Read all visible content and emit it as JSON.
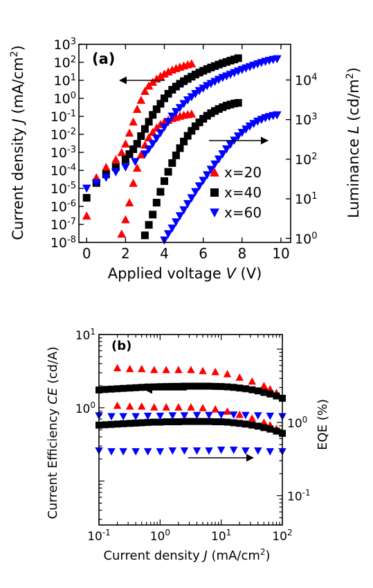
{
  "chart_data": [
    {
      "panel": "(a)",
      "type": "scatter",
      "xlabel": {
        "pre": "Applied voltage ",
        "var": "V",
        "post": " (V)"
      },
      "ylabel_left": {
        "pre": "Current density ",
        "var": "J",
        "post": " (mA/cm",
        "sup": "2",
        "close": ")"
      },
      "ylabel_right": {
        "pre": "Luminance ",
        "var": "L",
        "post": " (cd/m",
        "sup": "2",
        "close": ")"
      },
      "xlim": [
        -0.4,
        10.5
      ],
      "xticks": [
        0,
        2,
        4,
        6,
        8,
        10
      ],
      "ylim_left_log10": [
        -8,
        3
      ],
      "yscale_left": "log",
      "yticks_left": [
        -8,
        -7,
        -6,
        -5,
        -4,
        -3,
        -2,
        -1,
        0,
        1,
        2,
        3
      ],
      "ylim_right_log10": [
        -0.1,
        4.9
      ],
      "yscale_right": "log",
      "yticks_right": [
        0,
        1,
        2,
        3,
        4
      ],
      "legend": {
        "position": "bottom-right"
      },
      "annotations": [
        {
          "text": "arrow-left",
          "meaning": "J curves read on left axis"
        },
        {
          "text": "arrow-right",
          "meaning": "L curves read on right axis"
        }
      ],
      "series": [
        {
          "name": "x=20",
          "color": "#ff0000",
          "marker": "triangle-up",
          "J": {
            "x": [
              0,
              0.5,
              1.0,
              1.5,
              1.8,
              2.0,
              2.2,
              2.4,
              2.6,
              2.8,
              3.0,
              3.2,
              3.4,
              3.6,
              3.8,
              4.0,
              4.2,
              4.4,
              4.6,
              4.8,
              5.0,
              5.2,
              5.4
            ],
            "y": [
              3e-07,
              4e-05,
              0.00015,
              0.0004,
              0.001,
              0.003,
              0.012,
              0.05,
              0.25,
              0.8,
              2.5,
              5,
              8,
              12,
              17,
              23,
              30,
              38,
              46,
              55,
              65,
              75,
              85
            ]
          },
          "L": {
            "x": [
              1.8,
              2.0,
              2.2,
              2.4,
              2.6,
              2.8,
              3.0,
              3.2,
              3.4,
              3.6,
              3.8,
              4.0,
              4.2,
              4.4,
              4.6,
              4.8,
              5.0,
              5.2,
              5.4
            ],
            "y": [
              1.3,
              3,
              8,
              25,
              60,
              130,
              230,
              350,
              480,
              620,
              760,
              880,
              980,
              1080,
              1150,
              1230,
              1300,
              1350,
              1400
            ]
          }
        },
        {
          "name": "x=40",
          "color": "#000000",
          "marker": "square",
          "J": {
            "x": [
              0,
              0.5,
              1.0,
              1.5,
              2.0,
              2.2,
              2.4,
              2.6,
              2.8,
              3.0,
              3.2,
              3.4,
              3.6,
              3.8,
              4.0,
              4.2,
              4.4,
              4.6,
              4.8,
              5.0,
              5.2,
              5.4,
              5.6,
              5.8,
              6.0,
              6.2,
              6.4,
              6.6,
              6.8,
              7.0,
              7.2,
              7.4,
              7.6,
              7.8
            ],
            "y": [
              3e-06,
              2e-05,
              6e-05,
              0.00015,
              0.0004,
              0.0008,
              0.0015,
              0.003,
              0.008,
              0.02,
              0.05,
              0.12,
              0.25,
              0.5,
              1.0,
              1.8,
              3,
              4.5,
              6.5,
              9,
              12,
              16,
              21,
              27,
              34,
              42,
              52,
              62,
              75,
              90,
              105,
              125,
              145,
              170
            ]
          },
          "L": {
            "x": [
              3.0,
              3.2,
              3.4,
              3.6,
              3.8,
              4.0,
              4.2,
              4.4,
              4.6,
              4.8,
              5.0,
              5.2,
              5.4,
              5.6,
              5.8,
              6.0,
              6.2,
              6.4,
              6.6,
              6.8,
              7.0,
              7.2,
              7.4,
              7.6,
              7.8
            ],
            "y": [
              1.2,
              2.2,
              4,
              8,
              15,
              28,
              48,
              80,
              125,
              190,
              280,
              390,
              520,
              680,
              850,
              1050,
              1250,
              1450,
              1650,
              1850,
              2050,
              2250,
              2400,
              2550,
              2650
            ]
          }
        },
        {
          "name": "x=60",
          "color": "#0000ff",
          "marker": "triangle-down",
          "J": {
            "x": [
              0,
              0.5,
              1.0,
              1.5,
              2.0,
              2.5,
              3.0,
              3.2,
              3.4,
              3.6,
              3.8,
              4.0,
              4.2,
              4.4,
              4.6,
              4.8,
              5.0,
              5.2,
              5.4,
              5.6,
              5.8,
              6.0,
              6.2,
              6.4,
              6.6,
              6.8,
              7.0,
              7.2,
              7.4,
              7.6,
              7.8,
              8.0,
              8.2,
              8.4,
              8.6,
              8.8,
              9.0,
              9.2,
              9.4,
              9.6,
              9.8
            ],
            "y": [
              1e-05,
              2e-05,
              4e-05,
              8e-05,
              0.00015,
              0.0003,
              0.0008,
              0.0015,
              0.003,
              0.006,
              0.012,
              0.025,
              0.05,
              0.1,
              0.18,
              0.3,
              0.5,
              0.8,
              1.2,
              1.8,
              2.6,
              3.6,
              5,
              6.5,
              8.5,
              11,
              14,
              17,
              21,
              26,
              32,
              39,
              47,
              56,
              67,
              80,
              95,
              110,
              125,
              140,
              155
            ]
          },
          "L": {
            "x": [
              4.0,
              4.2,
              4.4,
              4.6,
              4.8,
              5.0,
              5.2,
              5.4,
              5.6,
              5.8,
              6.0,
              6.2,
              6.4,
              6.6,
              6.8,
              7.0,
              7.2,
              7.4,
              7.6,
              7.8,
              8.0,
              8.2,
              8.4,
              8.6,
              8.8,
              9.0,
              9.2,
              9.4,
              9.6,
              9.8
            ],
            "y": [
              0.9,
              1.3,
              1.8,
              2.6,
              3.7,
              5.2,
              7.5,
              10.5,
              15,
              21,
              29,
              40,
              55,
              75,
              100,
              135,
              180,
              235,
              300,
              380,
              470,
              570,
              680,
              790,
              900,
              1000,
              1100,
              1180,
              1250,
              1300
            ]
          }
        }
      ]
    },
    {
      "panel": "(b)",
      "type": "scatter",
      "xlabel": {
        "pre": "Current density ",
        "var": "J",
        "post": " (mA/cm",
        "sup": "2",
        "close": ")"
      },
      "ylabel_left": {
        "pre": "Current Efficiency ",
        "var": "CE",
        "post": " (cd/A)"
      },
      "ylabel_right": {
        "text": "EQE (%)"
      },
      "xscale": "log",
      "xlim_log10": [
        -1,
        2
      ],
      "xticks": [
        -1,
        0,
        1,
        2
      ],
      "ylim_left_log10": [
        -1.6,
        1
      ],
      "yticks_left": [
        0,
        1
      ],
      "ylim_right_log10": [
        -1.4,
        1.2
      ],
      "yticks_right": [
        -1,
        0
      ],
      "annotations": [
        {
          "text": "arrow-left",
          "meaning": "CE on left axis"
        },
        {
          "text": "arrow-right",
          "meaning": "EQE on right axis"
        }
      ],
      "series": [
        {
          "name": "x=20",
          "color": "#ff0000",
          "marker": "triangle-up",
          "x": [
            0.2,
            0.32,
            0.5,
            0.8,
            1.26,
            2.0,
            3.2,
            5.0,
            8.0,
            12.6,
            20,
            32,
            50,
            63,
            80
          ],
          "CE": [
            3.5,
            3.4,
            3.4,
            3.3,
            3.3,
            3.3,
            3.3,
            3.2,
            3.1,
            2.9,
            2.6,
            2.3,
            2.0,
            1.8,
            1.6
          ],
          "EQE": [
            1.7,
            1.66,
            1.66,
            1.62,
            1.62,
            1.62,
            1.62,
            1.58,
            1.52,
            1.42,
            1.28,
            1.14,
            1.0,
            0.92,
            0.82
          ]
        },
        {
          "name": "x=40",
          "color": "#000000",
          "marker": "square",
          "x": [
            0.1,
            0.126,
            0.16,
            0.2,
            0.25,
            0.32,
            0.4,
            0.5,
            0.63,
            0.8,
            1.0,
            1.26,
            1.6,
            2.0,
            2.5,
            3.2,
            4.0,
            5.0,
            6.3,
            8.0,
            10,
            12.6,
            16,
            20,
            25,
            32,
            40,
            50,
            63,
            80,
            100
          ],
          "CE": [
            1.75,
            1.78,
            1.8,
            1.82,
            1.84,
            1.86,
            1.88,
            1.9,
            1.92,
            1.93,
            1.94,
            1.95,
            1.96,
            1.96,
            1.97,
            1.97,
            1.97,
            1.97,
            1.97,
            1.96,
            1.95,
            1.93,
            1.9,
            1.86,
            1.82,
            1.76,
            1.7,
            1.62,
            1.54,
            1.45,
            1.35
          ],
          "EQE": [
            0.92,
            0.93,
            0.94,
            0.95,
            0.96,
            0.97,
            0.98,
            0.99,
            1.0,
            1.01,
            1.01,
            1.02,
            1.02,
            1.02,
            1.03,
            1.03,
            1.03,
            1.03,
            1.03,
            1.02,
            1.02,
            1.01,
            0.99,
            0.97,
            0.95,
            0.92,
            0.89,
            0.85,
            0.81,
            0.76,
            0.71
          ]
        },
        {
          "name": "x=60",
          "color": "#0000ff",
          "marker": "triangle-down",
          "x": [
            0.1,
            0.16,
            0.25,
            0.4,
            0.63,
            1.0,
            1.6,
            2.5,
            4.0,
            6.3,
            10,
            16,
            25,
            40,
            63,
            100
          ],
          "CE": [
            0.78,
            0.76,
            0.76,
            0.76,
            0.77,
            0.77,
            0.78,
            0.78,
            0.79,
            0.79,
            0.8,
            0.8,
            0.79,
            0.78,
            0.77,
            0.76
          ],
          "EQE": [
            0.41,
            0.4,
            0.4,
            0.4,
            0.4,
            0.4,
            0.41,
            0.41,
            0.41,
            0.41,
            0.42,
            0.42,
            0.41,
            0.41,
            0.4,
            0.4
          ]
        }
      ]
    }
  ]
}
